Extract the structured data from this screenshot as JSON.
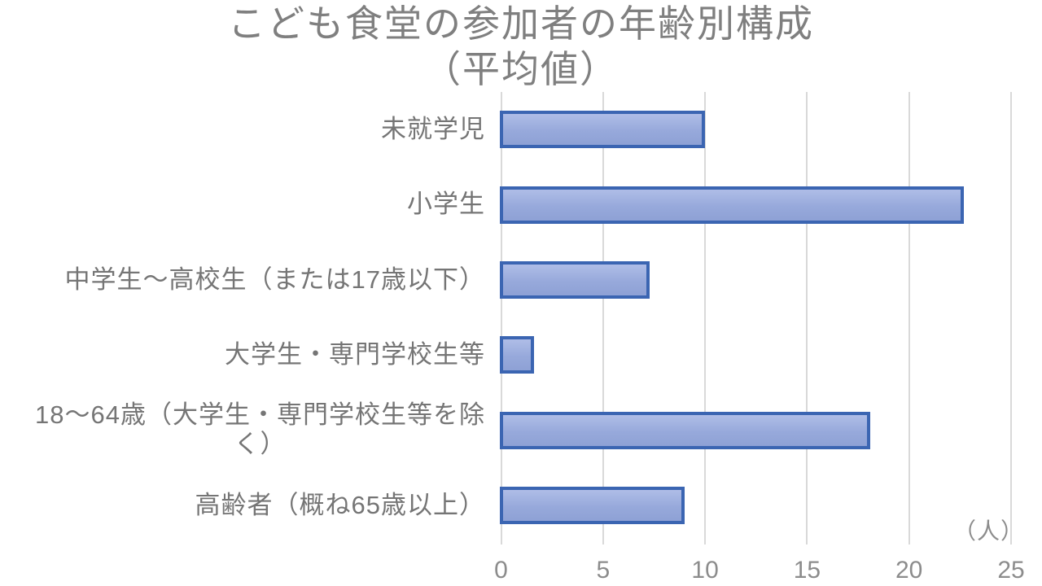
{
  "chart_data": {
    "type": "bar",
    "orientation": "horizontal",
    "title": "こども食堂の参加者の年齢別構成",
    "subtitle": "（平均値）",
    "categories": [
      "未就学児",
      "小学生",
      "中学生～高校生（または17歳以下）",
      "大学生・専門学校生等",
      "18～64歳（大学生・専門学校生等を除く）",
      "高齢者（概ね65歳以上）"
    ],
    "category_display": [
      "未就学児",
      "小学生",
      "中学生～高校生（または17歳以下）",
      "大学生・専門学校生等",
      "18～64歳（大学生・専門学校生等を除\nく）",
      "高齢者（概ね65歳以上）"
    ],
    "values": [
      10.0,
      22.7,
      7.3,
      1.6,
      18.1,
      9.0
    ],
    "xlabel": "",
    "ylabel": "",
    "x_unit": "（人）",
    "xlim": [
      0,
      25
    ],
    "x_ticks": [
      0,
      5,
      10,
      15,
      20,
      25
    ],
    "grid": true,
    "legend": "none",
    "colors": {
      "bar_fill": "#97A9DB",
      "bar_fill_light": "#AFBDE7",
      "bar_border": "#3B65B2",
      "gridline": "#D9D9D9",
      "title_text": "#7F7F7F",
      "label_text": "#757575",
      "tick_text": "#8C8C8C",
      "background": "#FFFFFF"
    }
  }
}
